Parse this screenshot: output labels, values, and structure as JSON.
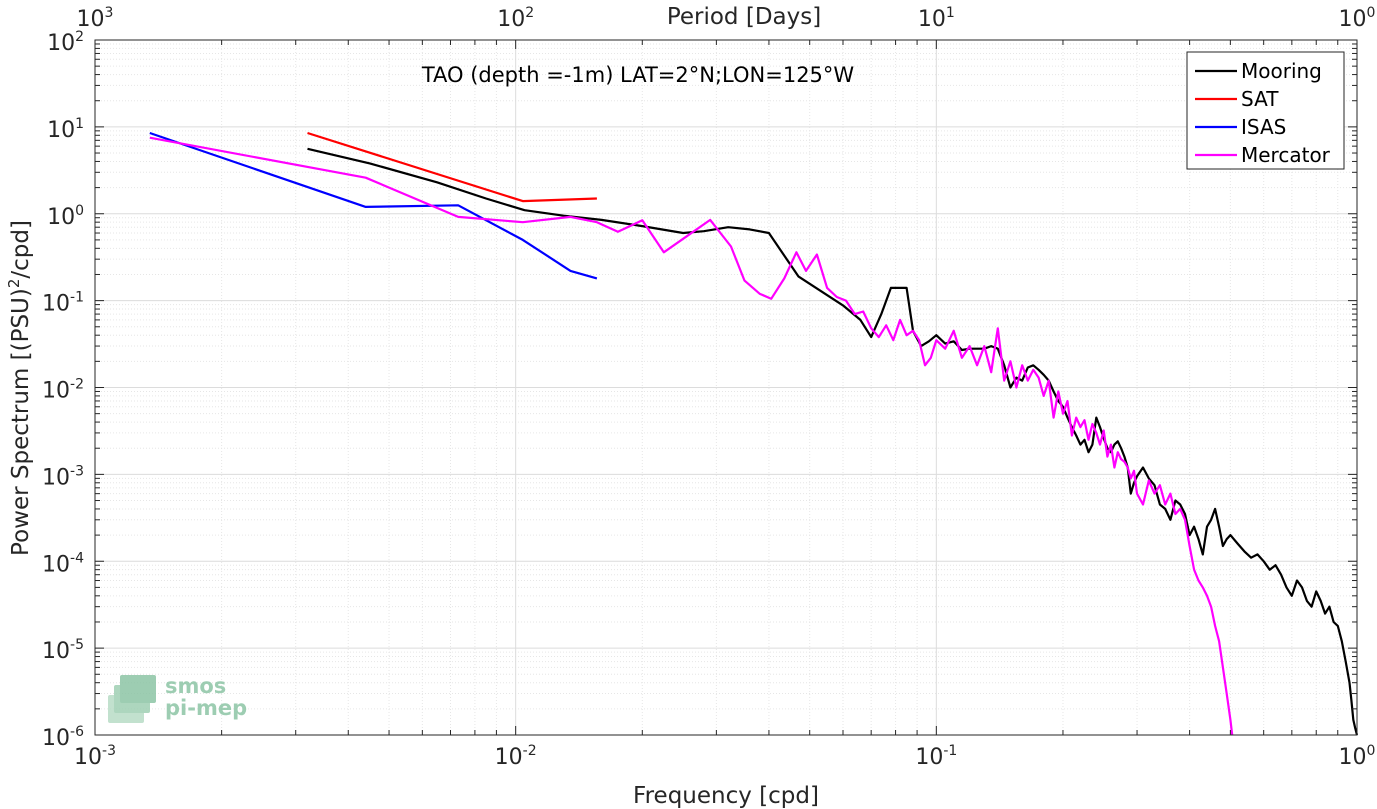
{
  "chart_data": {
    "type": "line",
    "title": "TAO (depth =-1m) LAT=2°N;LON=125°W",
    "xlabel": "Frequency [cpd]",
    "ylabel_main": "Power Spectrum [(PSU)",
    "ylabel_sup": "2",
    "ylabel_tail": "/cpd]",
    "top_xlabel": "Period [Days]",
    "x_scale": "log",
    "y_scale": "log",
    "xlim": [
      0.001,
      1
    ],
    "ylim": [
      1e-06,
      100
    ],
    "grid": true,
    "legend_position": "top-right",
    "x_ticks": [
      {
        "value": 0.001,
        "base": "10",
        "exp": "-3"
      },
      {
        "value": 0.01,
        "base": "10",
        "exp": "-2"
      },
      {
        "value": 0.1,
        "base": "10",
        "exp": "-1"
      },
      {
        "value": 1,
        "base": "10",
        "exp": "0"
      }
    ],
    "y_ticks": [
      {
        "value": 1e-06,
        "base": "10",
        "exp": "-6"
      },
      {
        "value": 1e-05,
        "base": "10",
        "exp": "-5"
      },
      {
        "value": 0.0001,
        "base": "10",
        "exp": "-4"
      },
      {
        "value": 0.001,
        "base": "10",
        "exp": "-3"
      },
      {
        "value": 0.01,
        "base": "10",
        "exp": "-2"
      },
      {
        "value": 0.1,
        "base": "10",
        "exp": "-1"
      },
      {
        "value": 1,
        "base": "10",
        "exp": "0"
      },
      {
        "value": 10,
        "base": "10",
        "exp": "1"
      },
      {
        "value": 100,
        "base": "10",
        "exp": "2"
      }
    ],
    "top_ticks": [
      {
        "period": 1000,
        "base": "10",
        "exp": "3"
      },
      {
        "period": 100,
        "base": "10",
        "exp": "2"
      },
      {
        "period": 10,
        "base": "10",
        "exp": "1"
      },
      {
        "period": 1,
        "base": "10",
        "exp": "0"
      }
    ],
    "series": [
      {
        "name": "Mooring",
        "color": "#000000",
        "points": [
          [
            0.0032,
            5.6
          ],
          [
            0.0045,
            3.8
          ],
          [
            0.0065,
            2.3
          ],
          [
            0.0085,
            1.5
          ],
          [
            0.0105,
            1.1
          ],
          [
            0.013,
            0.95
          ],
          [
            0.016,
            0.85
          ],
          [
            0.02,
            0.72
          ],
          [
            0.025,
            0.6
          ],
          [
            0.028,
            0.63
          ],
          [
            0.032,
            0.7
          ],
          [
            0.036,
            0.66
          ],
          [
            0.04,
            0.6
          ],
          [
            0.047,
            0.19
          ],
          [
            0.053,
            0.13
          ],
          [
            0.06,
            0.088
          ],
          [
            0.066,
            0.06
          ],
          [
            0.07,
            0.038
          ],
          [
            0.074,
            0.07
          ],
          [
            0.078,
            0.14
          ],
          [
            0.082,
            0.14
          ],
          [
            0.085,
            0.14
          ],
          [
            0.088,
            0.045
          ],
          [
            0.092,
            0.03
          ],
          [
            0.096,
            0.034
          ],
          [
            0.1,
            0.04
          ],
          [
            0.105,
            0.032
          ],
          [
            0.11,
            0.034
          ],
          [
            0.115,
            0.027
          ],
          [
            0.12,
            0.028
          ],
          [
            0.13,
            0.028
          ],
          [
            0.135,
            0.03
          ],
          [
            0.14,
            0.028
          ],
          [
            0.145,
            0.018
          ],
          [
            0.15,
            0.01
          ],
          [
            0.155,
            0.013
          ],
          [
            0.16,
            0.012
          ],
          [
            0.165,
            0.017
          ],
          [
            0.17,
            0.018
          ],
          [
            0.175,
            0.016
          ],
          [
            0.18,
            0.014
          ],
          [
            0.185,
            0.012
          ],
          [
            0.19,
            0.009
          ],
          [
            0.195,
            0.007
          ],
          [
            0.2,
            0.006
          ],
          [
            0.205,
            0.0045
          ],
          [
            0.21,
            0.0035
          ],
          [
            0.215,
            0.0028
          ],
          [
            0.22,
            0.0022
          ],
          [
            0.225,
            0.0025
          ],
          [
            0.23,
            0.0018
          ],
          [
            0.235,
            0.0022
          ],
          [
            0.24,
            0.0045
          ],
          [
            0.245,
            0.0035
          ],
          [
            0.25,
            0.0026
          ],
          [
            0.255,
            0.002
          ],
          [
            0.26,
            0.0018
          ],
          [
            0.265,
            0.0022
          ],
          [
            0.27,
            0.0024
          ],
          [
            0.275,
            0.002
          ],
          [
            0.28,
            0.0016
          ],
          [
            0.285,
            0.0012
          ],
          [
            0.29,
            0.0006
          ],
          [
            0.295,
            0.0008
          ],
          [
            0.3,
            0.00095
          ],
          [
            0.31,
            0.0012
          ],
          [
            0.32,
            0.0009
          ],
          [
            0.33,
            0.00075
          ],
          [
            0.34,
            0.00045
          ],
          [
            0.35,
            0.0004
          ],
          [
            0.36,
            0.0003
          ],
          [
            0.37,
            0.0005
          ],
          [
            0.38,
            0.00045
          ],
          [
            0.39,
            0.00035
          ],
          [
            0.4,
            0.0002
          ],
          [
            0.41,
            0.00025
          ],
          [
            0.42,
            0.00018
          ],
          [
            0.43,
            0.00012
          ],
          [
            0.44,
            0.00025
          ],
          [
            0.45,
            0.0003
          ],
          [
            0.46,
            0.0004
          ],
          [
            0.47,
            0.00025
          ],
          [
            0.48,
            0.00015
          ],
          [
            0.49,
            0.00018
          ],
          [
            0.5,
            0.0002
          ],
          [
            0.52,
            0.00016
          ],
          [
            0.54,
            0.00013
          ],
          [
            0.56,
            0.00011
          ],
          [
            0.58,
            0.00012
          ],
          [
            0.6,
            0.0001
          ],
          [
            0.62,
            8e-05
          ],
          [
            0.64,
            9e-05
          ],
          [
            0.66,
            7e-05
          ],
          [
            0.68,
            5e-05
          ],
          [
            0.7,
            4e-05
          ],
          [
            0.72,
            6e-05
          ],
          [
            0.74,
            5e-05
          ],
          [
            0.76,
            3.5e-05
          ],
          [
            0.78,
            3e-05
          ],
          [
            0.8,
            4.5e-05
          ],
          [
            0.82,
            3.5e-05
          ],
          [
            0.84,
            2.5e-05
          ],
          [
            0.86,
            3e-05
          ],
          [
            0.88,
            2e-05
          ],
          [
            0.9,
            1.8e-05
          ],
          [
            0.92,
            1.2e-05
          ],
          [
            0.94,
            7e-06
          ],
          [
            0.96,
            4e-06
          ],
          [
            0.97,
            2.5e-06
          ],
          [
            0.98,
            1.5e-06
          ],
          [
            0.99,
            1.2e-06
          ],
          [
            1.0,
            1e-06
          ]
        ]
      },
      {
        "name": "SAT",
        "color": "#ff0000",
        "points": [
          [
            0.0032,
            8.5
          ],
          [
            0.0104,
            1.4
          ],
          [
            0.0156,
            1.5
          ]
        ]
      },
      {
        "name": "ISAS",
        "color": "#0000ff",
        "points": [
          [
            0.00135,
            8.5
          ],
          [
            0.0044,
            1.2
          ],
          [
            0.0073,
            1.25
          ],
          [
            0.0104,
            0.5
          ],
          [
            0.0135,
            0.22
          ],
          [
            0.0156,
            0.18
          ]
        ]
      },
      {
        "name": "Mercator",
        "color": "#ff00ff",
        "points": [
          [
            0.00135,
            7.5
          ],
          [
            0.0044,
            2.6
          ],
          [
            0.0073,
            0.92
          ],
          [
            0.0104,
            0.8
          ],
          [
            0.0135,
            0.92
          ],
          [
            0.0156,
            0.8
          ],
          [
            0.0175,
            0.62
          ],
          [
            0.02,
            0.84
          ],
          [
            0.0225,
            0.36
          ],
          [
            0.0255,
            0.55
          ],
          [
            0.029,
            0.85
          ],
          [
            0.0325,
            0.42
          ],
          [
            0.035,
            0.17
          ],
          [
            0.038,
            0.12
          ],
          [
            0.0405,
            0.105
          ],
          [
            0.0435,
            0.18
          ],
          [
            0.0465,
            0.36
          ],
          [
            0.049,
            0.22
          ],
          [
            0.052,
            0.34
          ],
          [
            0.055,
            0.14
          ],
          [
            0.058,
            0.11
          ],
          [
            0.061,
            0.1
          ],
          [
            0.064,
            0.07
          ],
          [
            0.067,
            0.075
          ],
          [
            0.07,
            0.048
          ],
          [
            0.073,
            0.038
          ],
          [
            0.076,
            0.052
          ],
          [
            0.079,
            0.035
          ],
          [
            0.082,
            0.06
          ],
          [
            0.085,
            0.04
          ],
          [
            0.088,
            0.045
          ],
          [
            0.091,
            0.035
          ],
          [
            0.094,
            0.018
          ],
          [
            0.097,
            0.022
          ],
          [
            0.1,
            0.035
          ],
          [
            0.105,
            0.028
          ],
          [
            0.11,
            0.045
          ],
          [
            0.115,
            0.022
          ],
          [
            0.12,
            0.03
          ],
          [
            0.125,
            0.018
          ],
          [
            0.13,
            0.03
          ],
          [
            0.135,
            0.015
          ],
          [
            0.14,
            0.048
          ],
          [
            0.145,
            0.012
          ],
          [
            0.15,
            0.02
          ],
          [
            0.155,
            0.01
          ],
          [
            0.16,
            0.018
          ],
          [
            0.165,
            0.012
          ],
          [
            0.17,
            0.016
          ],
          [
            0.175,
            0.013
          ],
          [
            0.18,
            0.008
          ],
          [
            0.185,
            0.012
          ],
          [
            0.19,
            0.0045
          ],
          [
            0.195,
            0.009
          ],
          [
            0.2,
            0.005
          ],
          [
            0.205,
            0.007
          ],
          [
            0.21,
            0.0028
          ],
          [
            0.215,
            0.0045
          ],
          [
            0.22,
            0.0035
          ],
          [
            0.225,
            0.0042
          ],
          [
            0.23,
            0.0025
          ],
          [
            0.235,
            0.0038
          ],
          [
            0.24,
            0.003
          ],
          [
            0.245,
            0.0022
          ],
          [
            0.25,
            0.0032
          ],
          [
            0.255,
            0.0016
          ],
          [
            0.26,
            0.0022
          ],
          [
            0.265,
            0.0012
          ],
          [
            0.27,
            0.0018
          ],
          [
            0.275,
            0.0015
          ],
          [
            0.28,
            0.0014
          ],
          [
            0.285,
            0.0012
          ],
          [
            0.29,
            0.0009
          ],
          [
            0.295,
            0.0011
          ],
          [
            0.3,
            0.0006
          ],
          [
            0.31,
            0.00045
          ],
          [
            0.32,
            0.00085
          ],
          [
            0.33,
            0.0006
          ],
          [
            0.34,
            0.00075
          ],
          [
            0.35,
            0.00045
          ],
          [
            0.36,
            0.0006
          ],
          [
            0.37,
            0.00035
          ],
          [
            0.38,
            0.0004
          ],
          [
            0.39,
            0.0003
          ],
          [
            0.4,
            0.00015
          ],
          [
            0.41,
            8e-05
          ],
          [
            0.42,
            6e-05
          ],
          [
            0.43,
            5e-05
          ],
          [
            0.44,
            4e-05
          ],
          [
            0.45,
            3e-05
          ],
          [
            0.46,
            1.8e-05
          ],
          [
            0.47,
            1.2e-05
          ],
          [
            0.48,
            6e-06
          ],
          [
            0.49,
            3e-06
          ],
          [
            0.5,
            1.5e-06
          ],
          [
            0.505,
            1e-06
          ]
        ]
      }
    ]
  },
  "logo": {
    "line1": "smos",
    "line2": "pi-mep",
    "color": "#8cc5a5"
  }
}
